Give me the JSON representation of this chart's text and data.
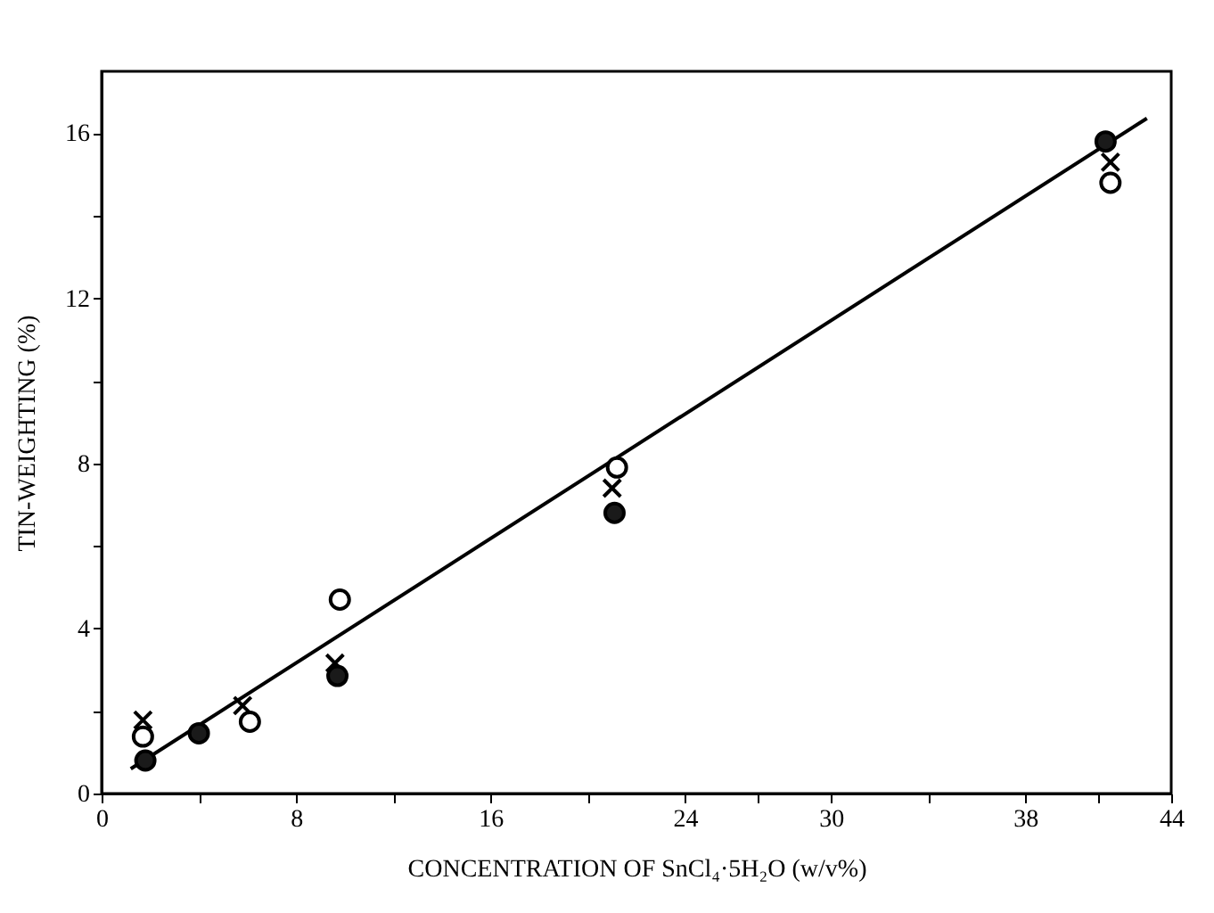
{
  "chart_data": {
    "type": "scatter",
    "xlabel": "CONCENTRATION OF SnCl₄·5H₂O (w/v%)",
    "ylabel": "TIN-WEIGHTING (%)",
    "xlim": [
      0,
      44
    ],
    "xticks": [
      0,
      {
        "value": 4,
        "label": null
      },
      8,
      {
        "value": 12,
        "label": null
      },
      16,
      {
        "value": 20,
        "label": null
      },
      24,
      {
        "value": 27,
        "label": null
      },
      30,
      {
        "value": 34,
        "label": null
      },
      38,
      {
        "value": 41,
        "label": null
      },
      44
    ],
    "ylim": [
      0,
      17.5
    ],
    "yticks": [
      0,
      {
        "value": 2,
        "label": null
      },
      4,
      {
        "value": 6,
        "label": null
      },
      8,
      {
        "value": 10,
        "label": null
      },
      12,
      {
        "value": 14,
        "label": null
      },
      16
    ],
    "grid": false,
    "series": [
      {
        "type": "line",
        "color": "#000000",
        "marker": "none",
        "line_style": "solid",
        "x": [
          1.2,
          43.0
        ],
        "values": [
          0.6,
          16.36
        ]
      },
      {
        "color": "#000000",
        "marker": "cross",
        "x": [
          1.7,
          5.8,
          9.6,
          21,
          41.5
        ],
        "values": [
          1.78,
          2.13,
          3.16,
          7.4,
          15.3
        ]
      },
      {
        "color": "#ffffff",
        "marker": "circle",
        "x": [
          1.7,
          6.1,
          9.8,
          21.2,
          41.5
        ],
        "values": [
          1.38,
          1.74,
          4.7,
          7.9,
          14.8
        ]
      },
      {
        "color": "#1a1a1a",
        "marker": "circle",
        "x": [
          1.8,
          4.0,
          9.7,
          21.1,
          41.3
        ],
        "values": [
          0.8,
          1.46,
          2.85,
          6.8,
          15.8
        ]
      }
    ]
  }
}
